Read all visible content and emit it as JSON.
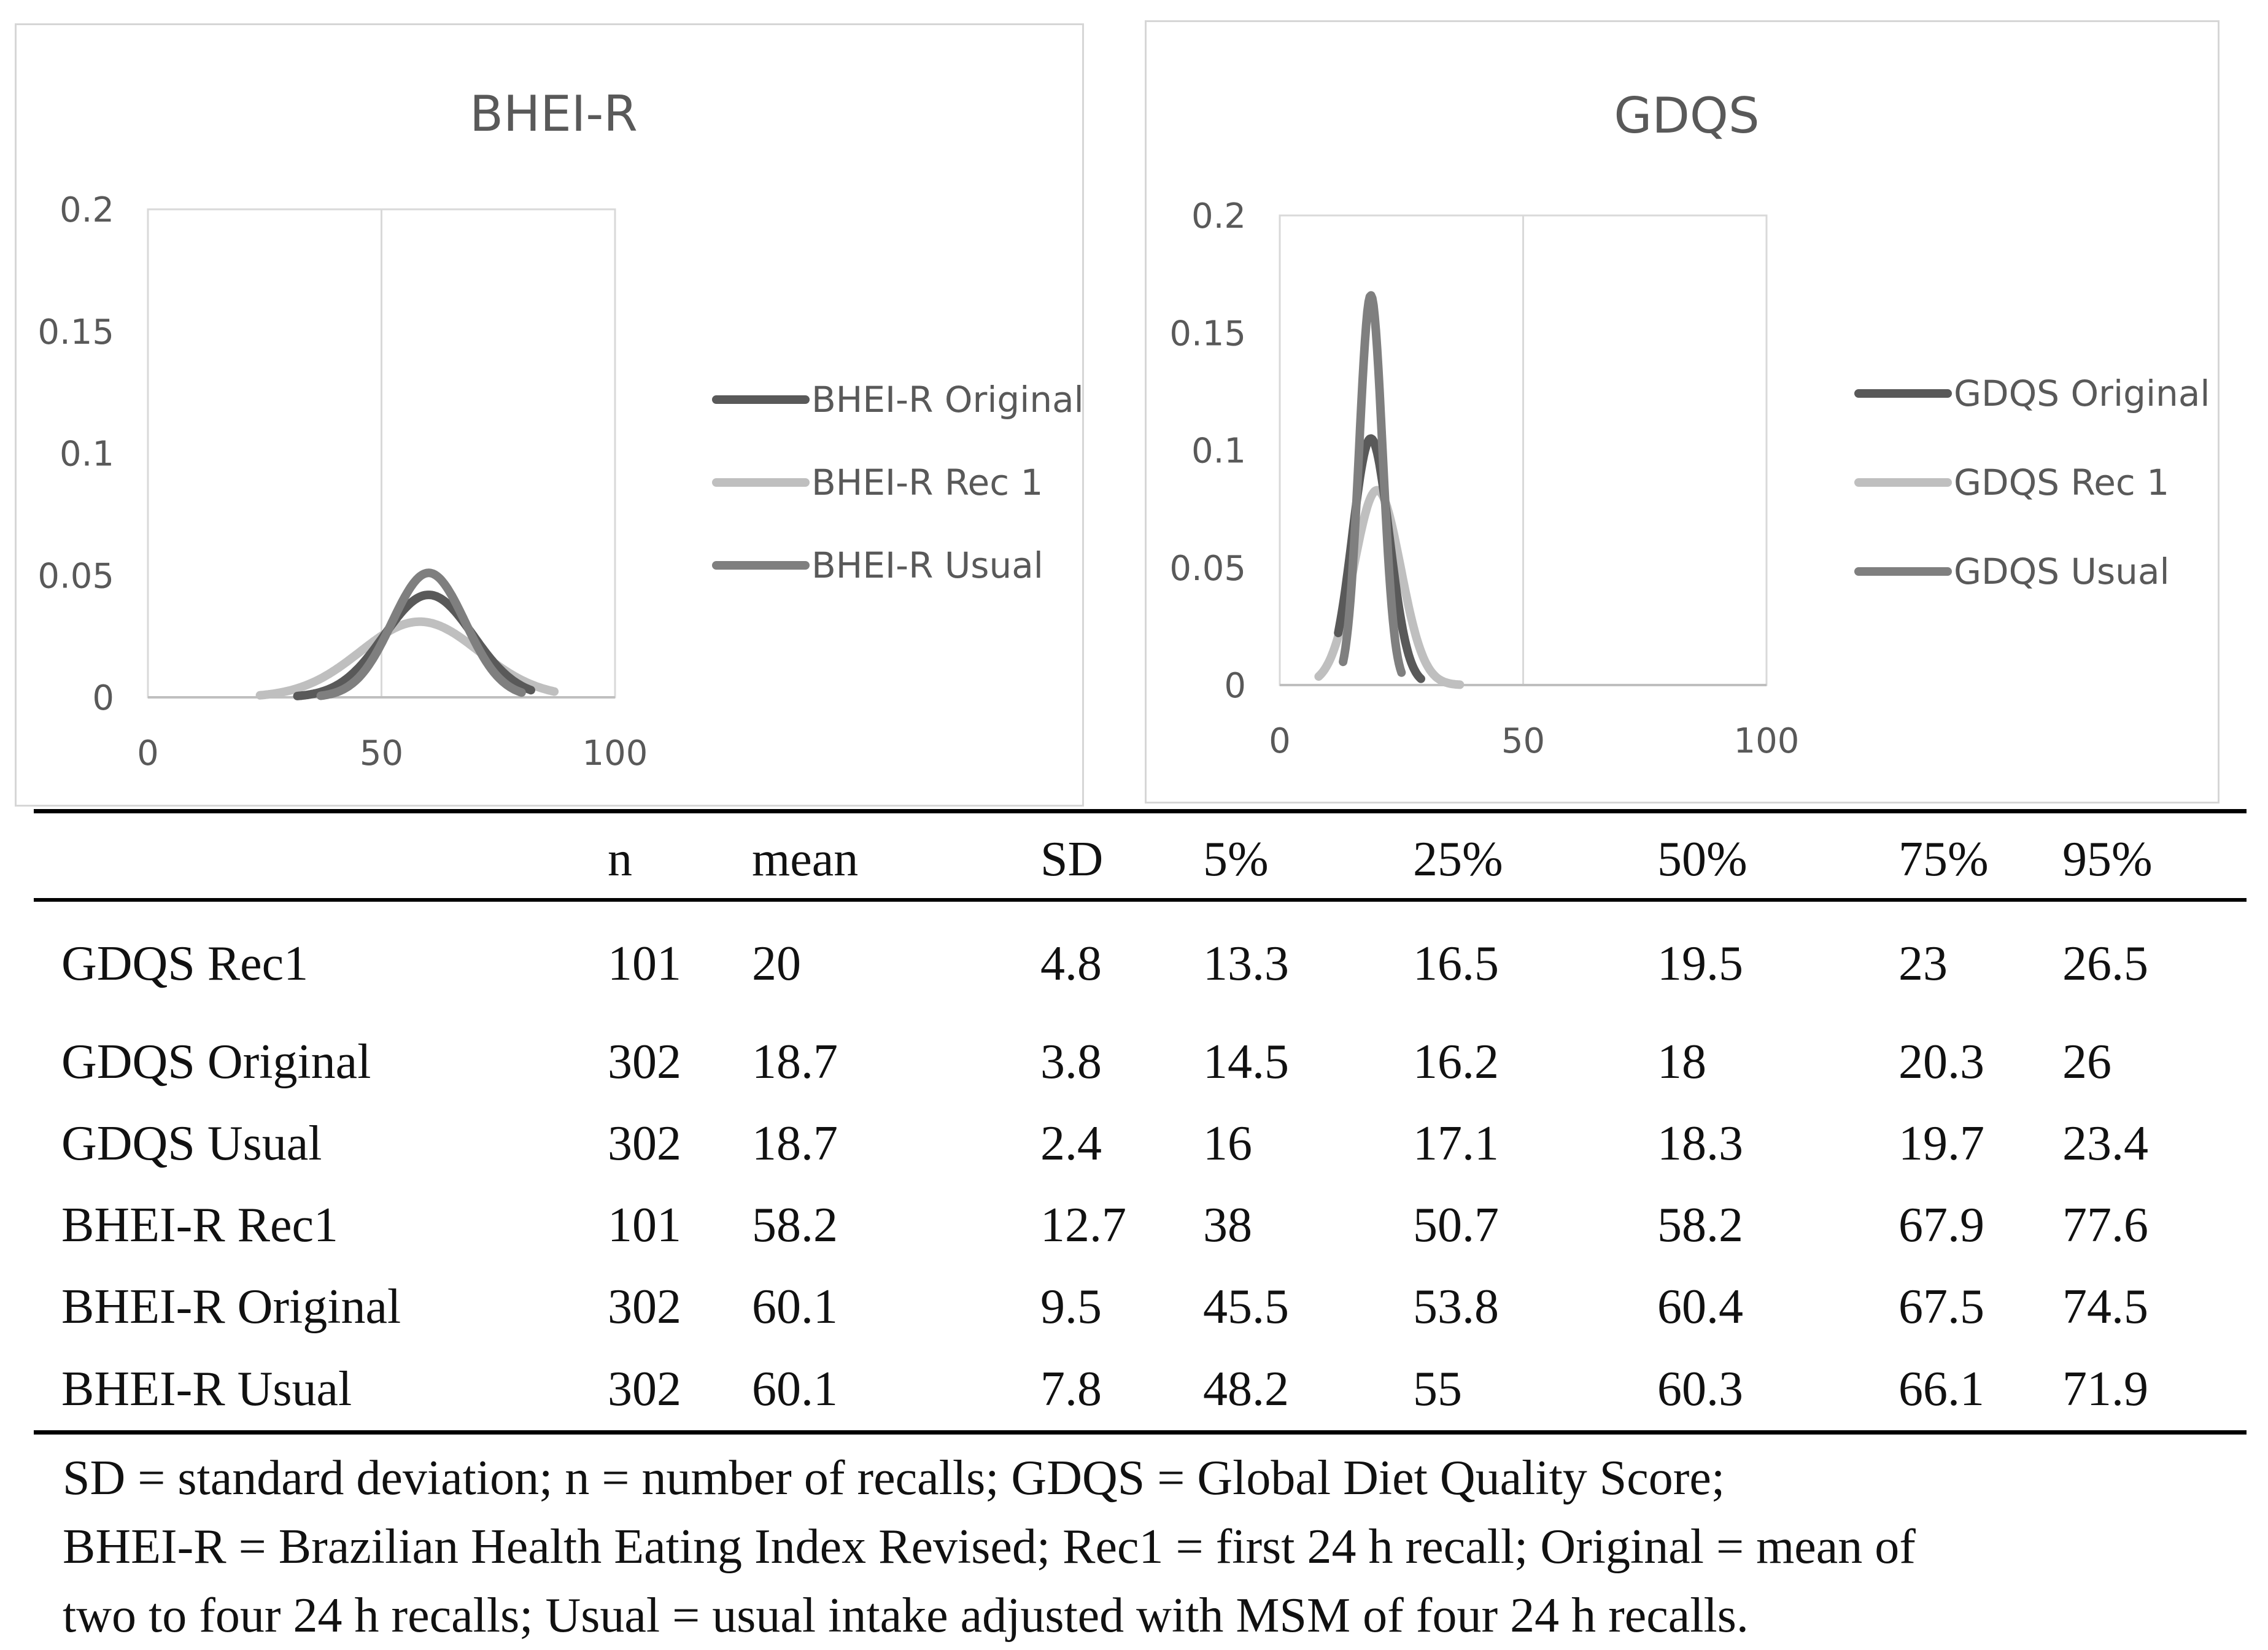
{
  "chart_data": [
    {
      "type": "line",
      "title": "BHEI-R",
      "xlabel": "",
      "ylabel": "",
      "xlim": [
        0,
        100
      ],
      "ylim": [
        0,
        0.2
      ],
      "x_ticks": [
        "0",
        "50",
        "100"
      ],
      "y_ticks": [
        "0",
        "0.05",
        "0.1",
        "0.15",
        "0.2"
      ],
      "grid": true,
      "legend_position": "right",
      "series": [
        {
          "name": "BHEI-R Original",
          "color": "#595959",
          "mean": 60.1,
          "sd": 9.5,
          "x_range": [
            32,
            82
          ],
          "peak": 0.042
        },
        {
          "name": "BHEI-R Rec 1",
          "color": "#bfbfbf",
          "mean": 58.2,
          "sd": 12.7,
          "x_range": [
            24,
            87
          ],
          "peak": 0.031
        },
        {
          "name": "BHEI-R Usual",
          "color": "#7f7f7f",
          "mean": 60.1,
          "sd": 7.8,
          "x_range": [
            37,
            80
          ],
          "peak": 0.051
        }
      ]
    },
    {
      "type": "line",
      "title": "GDQS",
      "xlabel": "",
      "ylabel": "",
      "xlim": [
        0,
        100
      ],
      "ylim": [
        0,
        0.2
      ],
      "x_ticks": [
        "0",
        "50",
        "100"
      ],
      "y_ticks": [
        "0",
        "0.05",
        "0.1",
        "0.15",
        "0.2"
      ],
      "grid": true,
      "legend_position": "right",
      "series": [
        {
          "name": "GDQS Original",
          "color": "#595959",
          "mean": 18.7,
          "sd": 3.8,
          "x_range": [
            12,
            29
          ],
          "peak": 0.105
        },
        {
          "name": "GDQS Rec 1",
          "color": "#bfbfbf",
          "mean": 20.0,
          "sd": 4.8,
          "x_range": [
            8,
            37
          ],
          "peak": 0.083
        },
        {
          "name": "GDQS Usual",
          "color": "#7f7f7f",
          "mean": 18.7,
          "sd": 2.4,
          "x_range": [
            13,
            25
          ],
          "peak": 0.166
        }
      ]
    }
  ],
  "table": {
    "headers": [
      "",
      "n",
      "mean",
      "SD",
      "5%",
      "25%",
      "50%",
      "75%",
      "95%"
    ],
    "rows": [
      [
        "GDQS Rec1",
        "101",
        "20",
        "4.8",
        "13.3",
        "16.5",
        "19.5",
        "23",
        "26.5"
      ],
      [
        "GDQS Original",
        "302",
        "18.7",
        "3.8",
        "14.5",
        "16.2",
        "18",
        "20.3",
        "26"
      ],
      [
        "GDQS Usual",
        "302",
        "18.7",
        "2.4",
        "16",
        "17.1",
        "18.3",
        "19.7",
        "23.4"
      ],
      [
        "BHEI-R Rec1",
        "101",
        "58.2",
        "12.7",
        "38",
        "50.7",
        "58.2",
        "67.9",
        "77.6"
      ],
      [
        "BHEI-R Original",
        "302",
        "60.1",
        "9.5",
        "45.5",
        "53.8",
        "60.4",
        "67.5",
        "74.5"
      ],
      [
        "BHEI-R Usual",
        "302",
        "60.1",
        "7.8",
        "48.2",
        "55",
        "60.3",
        "66.1",
        "71.9"
      ]
    ]
  },
  "footnote": [
    "SD = standard deviation; n = number of recalls; GDQS = Global Diet Quality Score;",
    "BHEI-R = Brazilian Health Eating Index Revised; Rec1 = first 24 h recall; Original = mean of",
    "two to four 24 h recalls; Usual = usual intake adjusted with MSM of four 24 h recalls."
  ]
}
